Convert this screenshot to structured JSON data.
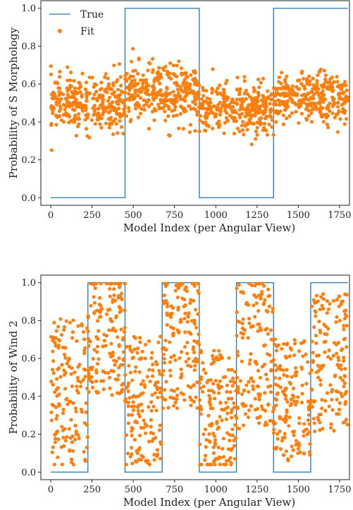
{
  "chart_data": [
    {
      "type": "scatter",
      "xlabel": "Model Index (per Angular View)",
      "ylabel": "Probability of S Morphology",
      "xlim": [
        -60,
        1810
      ],
      "ylim": [
        -0.04,
        1.04
      ],
      "xticks": [
        "0",
        "250",
        "500",
        "750",
        "1000",
        "1250",
        "1500",
        "1750"
      ],
      "xtick_values": [
        0,
        250,
        500,
        750,
        1000,
        1250,
        1500,
        1750
      ],
      "yticks": [
        "0.0",
        "0.2",
        "0.4",
        "0.6",
        "0.8",
        "1.0"
      ],
      "ytick_values": [
        0.0,
        0.2,
        0.4,
        0.6,
        0.8,
        1.0
      ],
      "legend": {
        "placement": "top-left",
        "entries": [
          "True",
          "Fit"
        ]
      },
      "grid": false,
      "series": [
        {
          "name": "True",
          "kind": "step",
          "color": "#1f77b4",
          "x": [
            0,
            450,
            450,
            900,
            900,
            1350,
            1350,
            1800
          ],
          "y": [
            0,
            0,
            1,
            1,
            0,
            0,
            1,
            1
          ]
        },
        {
          "name": "Fit",
          "kind": "scatter",
          "color": "#ff7f0e",
          "segments": [
            {
              "x_range": [
                0,
                450
              ],
              "center": 0.5,
              "spread": 0.13,
              "n": 300
            },
            {
              "x_range": [
                450,
                900
              ],
              "center": 0.55,
              "spread": 0.14,
              "n": 300
            },
            {
              "x_range": [
                900,
                1350
              ],
              "center": 0.47,
              "spread": 0.12,
              "n": 300
            },
            {
              "x_range": [
                1350,
                1800
              ],
              "center": 0.52,
              "spread": 0.12,
              "n": 300
            }
          ]
        }
      ]
    },
    {
      "type": "scatter",
      "xlabel": "Model Index (per Angular View)",
      "ylabel": "Probability of Wind 2",
      "xlim": [
        -60,
        1810
      ],
      "ylim": [
        -0.04,
        1.04
      ],
      "xticks": [
        "0",
        "250",
        "500",
        "750",
        "1000",
        "1250",
        "1500",
        "1750"
      ],
      "xtick_values": [
        0,
        250,
        500,
        750,
        1000,
        1250,
        1500,
        1750
      ],
      "yticks": [
        "0.0",
        "0.2",
        "0.4",
        "0.6",
        "0.8",
        "1.0"
      ],
      "ytick_values": [
        0.0,
        0.2,
        0.4,
        0.6,
        0.8,
        1.0
      ],
      "grid": false,
      "series": [
        {
          "name": "True",
          "kind": "step",
          "color": "#1f77b4",
          "x": [
            0,
            225,
            225,
            450,
            450,
            675,
            675,
            900,
            900,
            1125,
            1125,
            1350,
            1350,
            1575,
            1575,
            1800
          ],
          "y": [
            0,
            0,
            1,
            1,
            0,
            0,
            1,
            1,
            0,
            0,
            1,
            1,
            0,
            0,
            1,
            1
          ]
        },
        {
          "name": "Fit",
          "kind": "scatter",
          "color": "#ff7f0e",
          "segments": [
            {
              "x_range": [
                0,
                225
              ],
              "center": 0.42,
              "spread": 0.34,
              "n": 150
            },
            {
              "x_range": [
                225,
                450
              ],
              "center": 0.72,
              "spread": 0.28,
              "n": 150
            },
            {
              "x_range": [
                450,
                675
              ],
              "center": 0.38,
              "spread": 0.3,
              "n": 150
            },
            {
              "x_range": [
                675,
                900
              ],
              "center": 0.68,
              "spread": 0.3,
              "n": 150
            },
            {
              "x_range": [
                900,
                1125
              ],
              "center": 0.32,
              "spread": 0.28,
              "n": 150
            },
            {
              "x_range": [
                1125,
                1350
              ],
              "center": 0.62,
              "spread": 0.34,
              "n": 150
            },
            {
              "x_range": [
                1350,
                1575
              ],
              "center": 0.38,
              "spread": 0.28,
              "n": 150
            },
            {
              "x_range": [
                1575,
                1800
              ],
              "center": 0.58,
              "spread": 0.32,
              "n": 150
            }
          ]
        }
      ]
    }
  ]
}
